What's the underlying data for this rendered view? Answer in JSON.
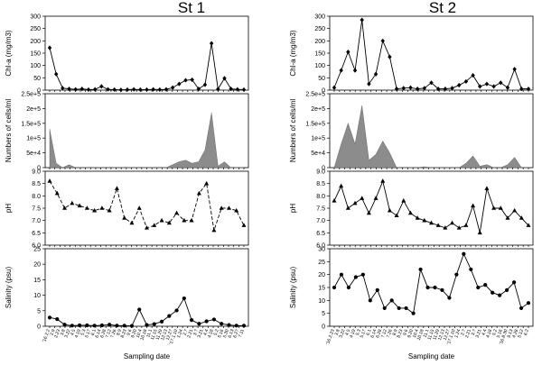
{
  "chart_data": [
    {
      "type": "line",
      "column_title": "St 1",
      "xlabel": "Sampling date",
      "x_ticks": [
        "'16.2.2",
        "2.9",
        "2.23",
        "3.8",
        "3.22",
        "4.5",
        "4.19",
        "5.3",
        "5.17",
        "6.1",
        "6.14",
        "6.28",
        "7.12",
        "7.26",
        "8.9",
        "8.23",
        "9.6",
        "9.20",
        "10.4",
        "10.18",
        "11.1",
        "11.15",
        "11.29",
        "12.13",
        "12.27",
        "'17.1.10",
        "1.24",
        "2.7",
        "2.21",
        "3.7",
        "3.21",
        "4.4",
        "4.18",
        "5.2",
        "5.16",
        "5.30",
        "6.13",
        "6.27",
        "7.11"
      ],
      "panels": [
        {
          "key": "chl",
          "ylabel": "Chl-a (mg/m3)",
          "yticks": [
            "0",
            "50",
            "100",
            "150",
            "200",
            "250",
            "300"
          ],
          "ylim": [
            0,
            300
          ],
          "series_type": "line",
          "marker": "diamond",
          "line_style": "solid",
          "values": [
            172,
            65,
            8,
            5,
            3,
            5,
            2,
            3,
            15,
            3,
            2,
            1,
            2,
            3,
            2,
            2,
            3,
            2,
            3,
            10,
            25,
            40,
            42,
            5,
            22,
            190,
            4,
            48,
            5,
            3,
            2
          ]
        },
        {
          "key": "cells",
          "ylabel": "Numbers of cells/ml",
          "yticks": [
            "0",
            "5e+4",
            "1e+5",
            "1.5e+5",
            "2e+5",
            "2.5e+5"
          ],
          "ylim": [
            0,
            250000
          ],
          "series_type": "area",
          "values": [
            130000,
            15000,
            0,
            10000,
            0,
            0,
            0,
            0,
            0,
            0,
            0,
            0,
            0,
            0,
            0,
            0,
            0,
            0,
            0,
            10000,
            20000,
            25000,
            15000,
            20000,
            60000,
            185000,
            5000,
            20000,
            0,
            0,
            0
          ]
        },
        {
          "key": "ph",
          "ylabel": "pH",
          "yticks": [
            "6.0",
            "6.5",
            "7.0",
            "7.5",
            "8.0",
            "8.5",
            "9.0"
          ],
          "ylim": [
            6.0,
            9.0
          ],
          "series_type": "line",
          "marker": "triangle",
          "line_style": "dashed",
          "values": [
            8.6,
            8.1,
            7.5,
            7.7,
            7.6,
            7.5,
            7.4,
            7.5,
            7.4,
            8.3,
            7.1,
            6.9,
            7.5,
            6.7,
            6.8,
            7.0,
            6.9,
            7.3,
            7.0,
            7.0,
            8.1,
            8.5,
            6.6,
            7.5,
            7.5,
            7.4,
            6.8
          ]
        },
        {
          "key": "sal",
          "ylabel": "Salinity (psu)",
          "yticks": [
            "0",
            "5",
            "10",
            "15",
            "20",
            "25"
          ],
          "ylim": [
            0,
            25
          ],
          "series_type": "line",
          "marker": "circle",
          "line_style": "solid",
          "values": [
            2.8,
            2.3,
            0.5,
            0.2,
            0.3,
            0.3,
            0.2,
            0.3,
            0.5,
            0.2,
            0.2,
            0.1,
            5.4,
            0.4,
            0.7,
            1.5,
            3.3,
            5.1,
            9.0,
            2.0,
            0.8,
            1.6,
            2.2,
            0.8,
            0.4,
            0.2,
            0.2
          ]
        }
      ]
    },
    {
      "type": "line",
      "column_title": "St 2",
      "xlabel": "Sampling date",
      "x_ticks": [
        "'16.2.23",
        "3.8",
        "3.22",
        "4.5",
        "4.19",
        "5.3",
        "5.17",
        "6.1",
        "6.14",
        "6.28",
        "7.12",
        "7.26",
        "8.9",
        "8.23",
        "9.6",
        "9.20",
        "10.4",
        "10.18",
        "11.1",
        "11.15",
        "11.29",
        "12.13",
        "12.27",
        "'17.1.10",
        "1.24",
        "2.7",
        "2.21",
        "3.7",
        "3.21",
        "4.4",
        "4.18",
        "5.2",
        "5.16",
        "'16.8.30",
        "9.13",
        "4.28",
        "5.12",
        "6.2"
      ],
      "panels": [
        {
          "key": "chl",
          "ylabel": "Chl-a (mg/m3)",
          "yticks": [
            "0",
            "50",
            "100",
            "150",
            "200",
            "250",
            "300"
          ],
          "ylim": [
            0,
            300
          ],
          "series_type": "line",
          "marker": "diamond",
          "line_style": "solid",
          "values": [
            10,
            80,
            155,
            80,
            285,
            25,
            65,
            200,
            135,
            5,
            8,
            10,
            5,
            8,
            30,
            5,
            5,
            8,
            20,
            35,
            60,
            15,
            25,
            15,
            30,
            10,
            85,
            5,
            5
          ]
        },
        {
          "key": "cells",
          "ylabel": "Numbers of cells/ml",
          "yticks": [
            "0",
            "5e+4",
            "1e+5",
            "1.5e+5",
            "2e+5",
            "2.5e+5"
          ],
          "ylim": [
            0,
            250000
          ],
          "series_type": "area",
          "values": [
            0,
            80000,
            150000,
            80000,
            210000,
            25000,
            45000,
            90000,
            50000,
            0,
            0,
            0,
            0,
            3000,
            0,
            0,
            0,
            0,
            0,
            15000,
            40000,
            5000,
            10000,
            0,
            0,
            10000,
            35000,
            0,
            0
          ]
        },
        {
          "key": "ph",
          "ylabel": "pH",
          "yticks": [
            "6.0",
            "6.5",
            "7.0",
            "7.5",
            "8.0",
            "8.5",
            "9.0"
          ],
          "ylim": [
            6.0,
            9.0
          ],
          "series_type": "line",
          "marker": "triangle",
          "line_style": "solid",
          "values": [
            7.8,
            8.4,
            7.5,
            7.7,
            7.9,
            7.3,
            7.9,
            8.6,
            7.4,
            7.2,
            7.8,
            7.3,
            7.1,
            7.0,
            6.9,
            6.8,
            6.7,
            6.9,
            6.7,
            6.8,
            7.6,
            6.5,
            8.3,
            7.5,
            7.5,
            7.1,
            7.4,
            7.1,
            6.8
          ]
        },
        {
          "key": "sal",
          "ylabel": "Salinity (psu)",
          "yticks": [
            "0",
            "5",
            "10",
            "15",
            "20",
            "25",
            "30"
          ],
          "ylim": [
            0,
            30
          ],
          "series_type": "line",
          "marker": "circle",
          "line_style": "solid",
          "values": [
            15,
            20,
            15,
            19,
            20,
            10,
            14,
            7,
            10,
            7,
            7,
            5,
            22,
            15,
            15,
            14,
            11,
            20,
            28,
            22,
            15,
            16,
            13,
            12,
            14,
            17,
            7,
            9
          ]
        }
      ]
    }
  ]
}
